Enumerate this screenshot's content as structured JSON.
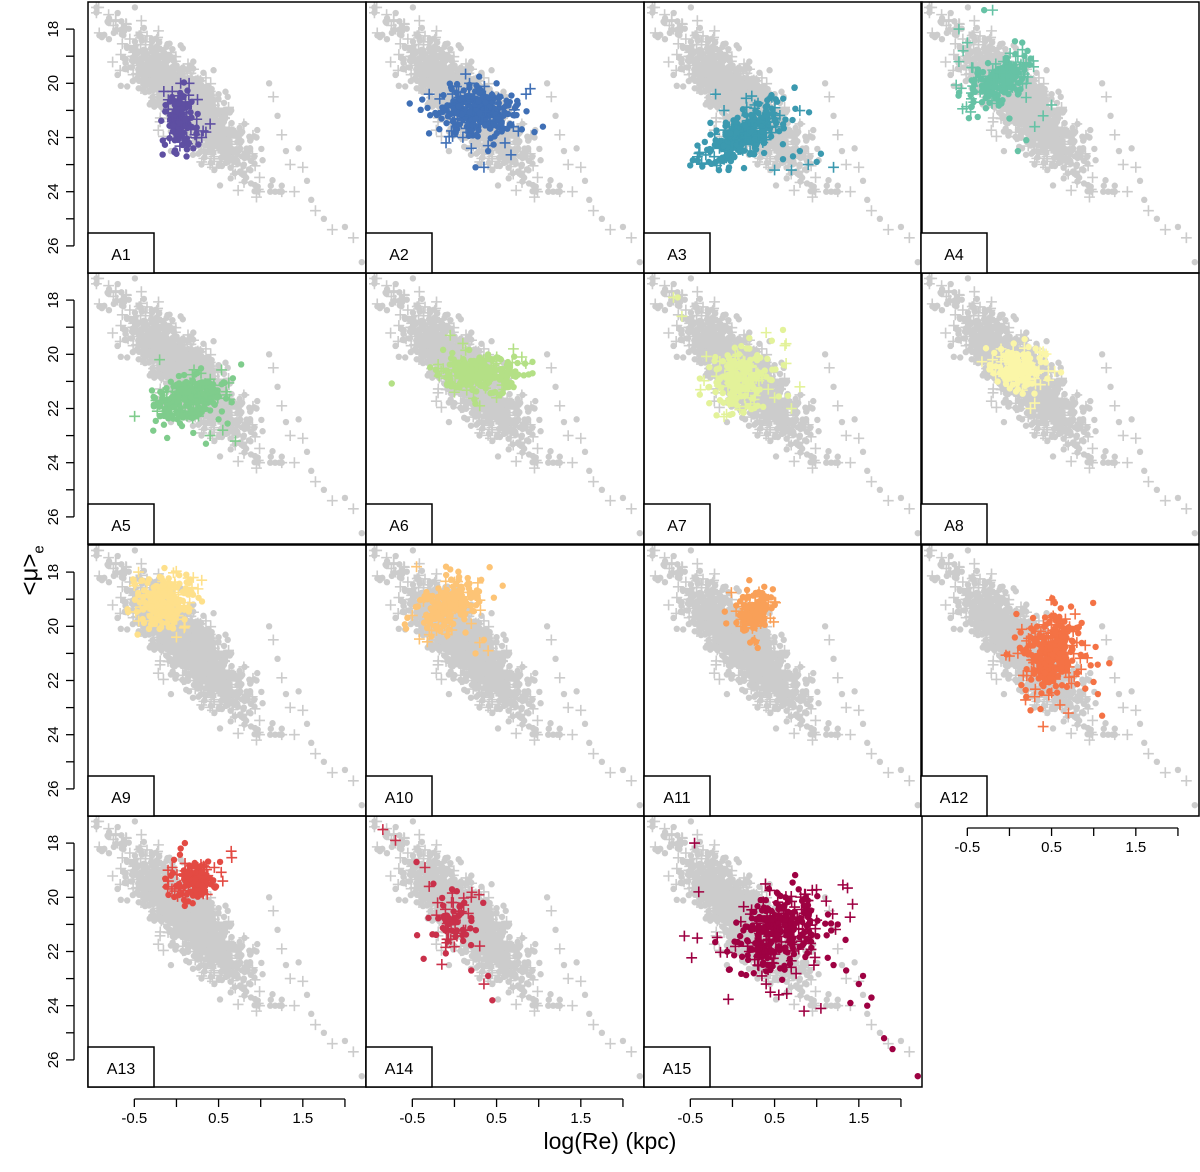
{
  "chart_data": {
    "type": "scatter",
    "layout": "small-multiples 4x4 grid",
    "xlabel": "log(Re) (kpc)",
    "ylabel_main": "<μ>",
    "ylabel_sub": "e",
    "xlim": [
      -1.05,
      2.25
    ],
    "ylim": [
      17.0,
      27.0
    ],
    "y_inverted": true,
    "x_ticks": [
      -0.5,
      0.0,
      0.5,
      1.0,
      1.5,
      2.0
    ],
    "x_tick_labels": [
      "-0.5",
      "",
      "0.5",
      "",
      "1.5",
      ""
    ],
    "y_ticks": [
      18,
      19,
      20,
      21,
      22,
      23,
      24,
      25,
      26
    ],
    "y_tick_labels": [
      "18",
      "",
      "20",
      "",
      "22",
      "",
      "24",
      "",
      "26"
    ],
    "background_color": "#cccccc",
    "background_population": {
      "description": "full galaxy sample shown in grey in every panel",
      "core_points": [
        [
          -0.6,
          17.8
        ],
        [
          -0.45,
          18.2
        ],
        [
          -0.3,
          18.7
        ],
        [
          -0.2,
          19.1
        ],
        [
          -0.1,
          19.5
        ],
        [
          0.0,
          19.9
        ],
        [
          0.1,
          20.3
        ],
        [
          0.2,
          20.7
        ],
        [
          0.3,
          21.1
        ],
        [
          0.4,
          21.5
        ],
        [
          0.5,
          21.9
        ],
        [
          0.6,
          22.3
        ],
        [
          0.7,
          22.7
        ],
        [
          0.8,
          23.0
        ],
        [
          0.2,
          19.2
        ],
        [
          0.35,
          19.8
        ],
        [
          0.5,
          20.4
        ],
        [
          0.65,
          21.0
        ],
        [
          0.8,
          21.5
        ],
        [
          0.95,
          22.0
        ],
        [
          -0.2,
          20.8
        ],
        [
          -0.1,
          21.3
        ],
        [
          0.0,
          21.8
        ],
        [
          0.15,
          22.4
        ],
        [
          0.3,
          22.9
        ],
        [
          0.05,
          18.6
        ],
        [
          0.45,
          23.2
        ],
        [
          0.9,
          22.6
        ]
      ],
      "outliers": [
        [
          -0.95,
          17.4
        ],
        [
          -0.8,
          17.6
        ],
        [
          -0.7,
          18.0
        ],
        [
          1.1,
          20.0
        ],
        [
          1.15,
          20.5
        ],
        [
          1.2,
          21.2
        ],
        [
          1.25,
          21.9
        ],
        [
          1.3,
          22.5
        ],
        [
          1.35,
          23.0
        ],
        [
          1.45,
          22.4
        ],
        [
          1.5,
          23.1
        ],
        [
          1.55,
          23.6
        ],
        [
          1.4,
          24.0
        ],
        [
          1.6,
          24.3
        ],
        [
          1.65,
          24.7
        ],
        [
          1.75,
          25.0
        ],
        [
          1.85,
          25.4
        ],
        [
          2.0,
          25.3
        ],
        [
          2.1,
          25.7
        ],
        [
          2.2,
          26.6
        ],
        [
          0.95,
          24.2
        ]
      ]
    },
    "panels": [
      {
        "label": "A1",
        "color": "#5e4fa2",
        "cx": 0.05,
        "cy": 21.4,
        "sx": 0.09,
        "sy": 0.5,
        "rho": -0.2,
        "n": 170,
        "plus_extra": [
          [
            -0.15,
            20.3
          ],
          [
            -0.05,
            20.3
          ],
          [
            0.05,
            20.0
          ],
          [
            0.15,
            20.0
          ],
          [
            0.25,
            20.6
          ],
          [
            0.35,
            21.8
          ],
          [
            0.4,
            21.5
          ],
          [
            0.3,
            22.0
          ],
          [
            -0.05,
            21.2
          ],
          [
            0.22,
            21.9
          ]
        ],
        "dot_extra": [
          [
            0.0,
            22.6
          ],
          [
            0.12,
            22.7
          ],
          [
            0.2,
            22.4
          ],
          [
            -0.02,
            22.1
          ]
        ]
      },
      {
        "label": "A2",
        "color": "#3f6fb5",
        "cx": 0.25,
        "cy": 21.0,
        "sx": 0.22,
        "sy": 0.45,
        "rho": 0.1,
        "n": 330,
        "plus_extra": [
          [
            -0.3,
            20.4
          ],
          [
            0.1,
            22.0
          ],
          [
            0.2,
            22.4
          ],
          [
            0.4,
            22.3
          ],
          [
            0.6,
            22.2
          ],
          [
            0.85,
            20.4
          ],
          [
            0.9,
            20.2
          ],
          [
            -0.1,
            22.2
          ],
          [
            0.35,
            23.1
          ],
          [
            0.7,
            21.6
          ]
        ],
        "dot_extra": [
          [
            0.5,
            20.0
          ],
          [
            0.8,
            21.7
          ],
          [
            0.95,
            21.8
          ],
          [
            1.05,
            21.6
          ],
          [
            0.4,
            22.5
          ],
          [
            0.25,
            23.1
          ]
        ]
      },
      {
        "label": "A3",
        "color": "#3b99af",
        "cx": 0.15,
        "cy": 21.8,
        "sx": 0.25,
        "sy": 0.6,
        "rho": -0.65,
        "n": 320,
        "plus_extra": [
          [
            -0.2,
            20.4
          ],
          [
            0.5,
            23.2
          ],
          [
            0.9,
            23.0
          ],
          [
            1.2,
            23.1
          ],
          [
            0.7,
            23.2
          ],
          [
            -0.1,
            21.0
          ]
        ],
        "dot_extra": [
          [
            0.8,
            22.5
          ],
          [
            1.0,
            22.9
          ],
          [
            1.05,
            22.6
          ],
          [
            0.6,
            22.8
          ]
        ]
      },
      {
        "label": "A4",
        "color": "#66c2a5",
        "cx": -0.1,
        "cy": 19.9,
        "sx": 0.18,
        "sy": 0.45,
        "rho": -0.5,
        "n": 220,
        "plus_extra": [
          [
            -0.6,
            18.0
          ],
          [
            -0.5,
            18.5
          ],
          [
            -0.55,
            18.8
          ],
          [
            -0.2,
            17.3
          ],
          [
            -0.6,
            19.2
          ],
          [
            0.5,
            20.8
          ],
          [
            0.4,
            21.2
          ],
          [
            0.3,
            21.6
          ],
          [
            0.2,
            20.0
          ],
          [
            0.1,
            19.0
          ]
        ],
        "dot_extra": [
          [
            -0.3,
            17.3
          ],
          [
            0.2,
            22.1
          ],
          [
            0.1,
            22.5
          ],
          [
            0.0,
            21.3
          ]
        ]
      },
      {
        "label": "A5",
        "color": "#7fcc8c",
        "cx": 0.15,
        "cy": 21.6,
        "sx": 0.2,
        "sy": 0.45,
        "rho": -0.35,
        "n": 260,
        "plus_extra": [
          [
            -0.2,
            20.2
          ],
          [
            0.7,
            23.2
          ],
          [
            0.4,
            23.0
          ],
          [
            0.55,
            22.8
          ],
          [
            0.6,
            21.5
          ],
          [
            -0.1,
            22.2
          ]
        ],
        "dot_extra": [
          [
            0.35,
            23.3
          ],
          [
            0.2,
            22.9
          ],
          [
            0.5,
            22.4
          ]
        ]
      },
      {
        "label": "A6",
        "color": "#b4e086",
        "cx": 0.3,
        "cy": 20.7,
        "sx": 0.25,
        "sy": 0.35,
        "rho": 0.0,
        "n": 260,
        "plus_extra": [
          [
            -0.05,
            19.3
          ],
          [
            0.1,
            19.6
          ],
          [
            0.7,
            19.8
          ],
          [
            0.8,
            20.1
          ],
          [
            0.5,
            21.6
          ],
          [
            0.0,
            21.4
          ],
          [
            0.3,
            21.9
          ]
        ],
        "dot_extra": [
          [
            0.15,
            20.9
          ],
          [
            0.65,
            21.2
          ],
          [
            -0.1,
            20.6
          ]
        ]
      },
      {
        "label": "A7",
        "color": "#e3f29a",
        "cx": 0.1,
        "cy": 20.9,
        "sx": 0.2,
        "sy": 0.55,
        "rho": -0.3,
        "n": 200,
        "plus_extra": [
          [
            -0.7,
            17.9
          ],
          [
            -0.6,
            18.6
          ],
          [
            0.4,
            19.2
          ],
          [
            0.5,
            21.6
          ],
          [
            0.7,
            22.0
          ],
          [
            0.8,
            21.2
          ],
          [
            -0.1,
            22.3
          ]
        ],
        "dot_extra": [
          [
            -0.65,
            17.9
          ],
          [
            0.6,
            19.1
          ],
          [
            0.2,
            19.4
          ],
          [
            0.3,
            21.9
          ],
          [
            0.0,
            22.2
          ]
        ]
      },
      {
        "label": "A8",
        "color": "#fbf6a8",
        "cx": 0.1,
        "cy": 20.5,
        "sx": 0.15,
        "sy": 0.4,
        "rho": 0.0,
        "n": 180,
        "plus_extra": [
          [
            -0.2,
            20.2
          ],
          [
            0.3,
            21.8
          ],
          [
            0.25,
            22.0
          ],
          [
            -0.1,
            19.8
          ],
          [
            0.4,
            19.9
          ],
          [
            0.35,
            20.6
          ]
        ],
        "dot_extra": [
          [
            0.05,
            19.6
          ],
          [
            0.45,
            20.9
          ]
        ]
      },
      {
        "label": "A9",
        "color": "#fee08b",
        "cx": -0.15,
        "cy": 19.1,
        "sx": 0.18,
        "sy": 0.5,
        "rho": -0.1,
        "n": 230,
        "plus_extra": [
          [
            -0.5,
            18.5
          ],
          [
            0.2,
            18.2
          ],
          [
            0.3,
            18.3
          ],
          [
            0.0,
            20.4
          ],
          [
            -0.3,
            19.8
          ],
          [
            -0.45,
            18.0
          ],
          [
            0.1,
            20.0
          ]
        ],
        "dot_extra": [
          [
            0.15,
            18.4
          ],
          [
            -0.05,
            20.0
          ]
        ]
      },
      {
        "label": "A10",
        "color": "#fdc476",
        "cx": -0.05,
        "cy": 19.2,
        "sx": 0.2,
        "sy": 0.5,
        "rho": -0.5,
        "n": 220,
        "plus_extra": [
          [
            -0.45,
            17.8
          ],
          [
            -0.5,
            19.6
          ],
          [
            0.3,
            20.6
          ],
          [
            0.4,
            20.9
          ],
          [
            0.0,
            18.5
          ],
          [
            0.2,
            19.9
          ]
        ],
        "dot_extra": [
          [
            -0.1,
            17.8
          ],
          [
            -0.05,
            17.9
          ],
          [
            0.25,
            21.0
          ],
          [
            0.35,
            20.5
          ]
        ]
      },
      {
        "label": "A11",
        "color": "#f9a058",
        "cx": 0.25,
        "cy": 19.5,
        "sx": 0.12,
        "sy": 0.4,
        "rho": -0.3,
        "n": 150,
        "plus_extra": [
          [
            0.5,
            19.1
          ],
          [
            0.45,
            19.7
          ],
          [
            0.35,
            18.9
          ],
          [
            0.1,
            20.0
          ]
        ],
        "dot_extra": [
          [
            0.2,
            18.3
          ],
          [
            0.25,
            20.5
          ],
          [
            0.3,
            20.8
          ]
        ]
      },
      {
        "label": "A12",
        "color": "#f47245",
        "cx": 0.5,
        "cy": 21.0,
        "sx": 0.18,
        "sy": 0.7,
        "rho": 0.0,
        "n": 320,
        "plus_extra": [
          [
            0.0,
            21.1
          ],
          [
            0.1,
            21.0
          ],
          [
            0.2,
            20.9
          ],
          [
            0.8,
            20.6
          ],
          [
            0.9,
            20.7
          ],
          [
            0.6,
            22.9
          ],
          [
            0.4,
            23.7
          ],
          [
            0.7,
            23.2
          ],
          [
            0.3,
            22.6
          ]
        ],
        "dot_extra": [
          [
            1.05,
            22.5
          ],
          [
            1.1,
            23.3
          ],
          [
            0.9,
            22.3
          ],
          [
            0.25,
            23.1
          ],
          [
            0.2,
            22.6
          ]
        ]
      },
      {
        "label": "A13",
        "color": "#e34a43",
        "cx": 0.2,
        "cy": 19.4,
        "sx": 0.14,
        "sy": 0.35,
        "rho": 0.0,
        "n": 150,
        "plus_extra": [
          [
            0.65,
            18.3
          ],
          [
            0.45,
            18.9
          ],
          [
            0.55,
            19.4
          ],
          [
            -0.1,
            19.0
          ],
          [
            -0.05,
            18.9
          ]
        ],
        "dot_extra": [
          [
            0.05,
            18.2
          ],
          [
            0.1,
            18.0
          ],
          [
            0.3,
            19.9
          ]
        ]
      },
      {
        "label": "A14",
        "color": "#c9304a",
        "cx": 0.0,
        "cy": 20.8,
        "sx": 0.14,
        "sy": 0.6,
        "rho": -0.3,
        "n": 75,
        "plus_extra": [
          [
            -0.85,
            17.5
          ],
          [
            -0.7,
            17.9
          ],
          [
            -0.35,
            18.9
          ],
          [
            -0.3,
            19.6
          ],
          [
            -0.2,
            20.2
          ],
          [
            0.2,
            20.0
          ],
          [
            0.3,
            21.8
          ],
          [
            0.35,
            23.2
          ],
          [
            0.05,
            20.6
          ]
        ],
        "dot_extra": [
          [
            -0.45,
            18.7
          ],
          [
            -0.25,
            19.5
          ],
          [
            0.2,
            22.7
          ],
          [
            0.4,
            22.9
          ],
          [
            0.45,
            23.8
          ],
          [
            0.1,
            21.2
          ]
        ]
      },
      {
        "label": "A15",
        "color": "#9e0142",
        "cx": 0.55,
        "cy": 21.3,
        "sx": 0.3,
        "sy": 0.75,
        "rho": -0.3,
        "n": 330,
        "plus_extra": [
          [
            -0.45,
            18.0
          ],
          [
            -0.4,
            19.8
          ],
          [
            0.2,
            22.0
          ],
          [
            0.3,
            22.5
          ],
          [
            0.4,
            23.2
          ],
          [
            0.45,
            23.5
          ],
          [
            0.55,
            23.6
          ],
          [
            0.85,
            24.2
          ],
          [
            1.05,
            24.1
          ],
          [
            0.1,
            20.9
          ],
          [
            0.35,
            22.9
          ]
        ],
        "dot_extra": [
          [
            1.2,
            22.5
          ],
          [
            1.35,
            22.7
          ],
          [
            1.5,
            23.2
          ],
          [
            1.55,
            22.9
          ],
          [
            1.65,
            23.7
          ],
          [
            1.6,
            24.0
          ],
          [
            1.8,
            25.2
          ],
          [
            1.9,
            25.6
          ],
          [
            2.2,
            26.6
          ],
          [
            1.4,
            23.9
          ],
          [
            1.25,
            21.0
          ]
        ]
      }
    ]
  }
}
